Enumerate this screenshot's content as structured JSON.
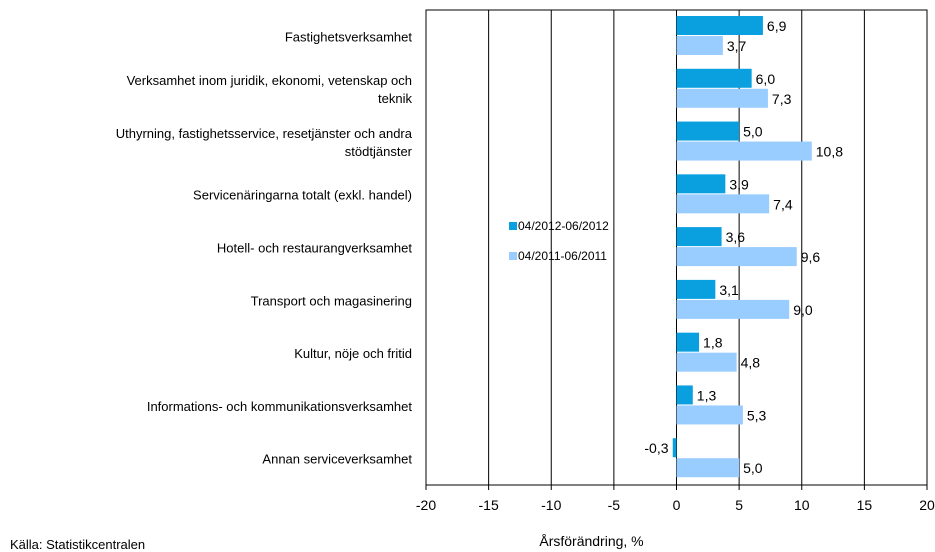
{
  "chart_data": {
    "type": "bar",
    "orientation": "horizontal",
    "xlabel": "Årsförändring, %",
    "xlim": [
      -20,
      20
    ],
    "xticks": [
      -20,
      -15,
      -10,
      -5,
      0,
      5,
      10,
      15,
      20
    ],
    "grid": "vertical",
    "legend_position": "center-left",
    "categories": [
      "Fastighetsverksamhet",
      "Verksamhet inom juridik, ekonomi, vetenskap och teknik",
      "Uthyrning, fastighetsservice, resetjänster och andra stödtjänster",
      "Servicenäringarna totalt (exkl. handel)",
      "Hotell- och restaurangverksamhet",
      "Transport och magasinering",
      "Kultur, nöje och fritid",
      "Informations- och kommunikationsverksamhet",
      "Annan serviceverksamhet"
    ],
    "series": [
      {
        "name": "04/2012-06/2012",
        "color": "#0aa0e0",
        "values": [
          6.9,
          6.0,
          5.0,
          3.9,
          3.6,
          3.1,
          1.8,
          1.3,
          -0.3
        ],
        "labels": [
          "6,9",
          "6,0",
          "5,0",
          "3,9",
          "3,6",
          "3,1",
          "1,8",
          "1,3",
          "-0,3"
        ]
      },
      {
        "name": "04/2011-06/2011",
        "color": "#99ccff",
        "values": [
          3.7,
          7.3,
          10.8,
          7.4,
          9.6,
          9.0,
          4.8,
          5.3,
          5.0
        ],
        "labels": [
          "3,7",
          "7,3",
          "10,8",
          "7,4",
          "9,6",
          "9,0",
          "4,8",
          "5,3",
          "5,0"
        ]
      }
    ]
  },
  "source": "Källa: Statistikcentralen"
}
